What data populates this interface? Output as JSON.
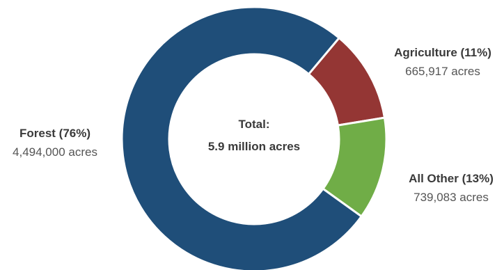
{
  "chart_data": {
    "type": "pie",
    "style": "donut",
    "center_label": {
      "line1": "Total:",
      "line2": "5.9 million acres"
    },
    "slices": [
      {
        "name": "Forest",
        "percent_label": "Forest (76%)",
        "value": 4494000,
        "value_label": "4,494,000 acres",
        "color": "#1f4e79"
      },
      {
        "name": "Agriculture",
        "percent_label": "Agriculture (11%)",
        "value": 665917,
        "value_label": "665,917 acres",
        "color": "#943634"
      },
      {
        "name": "All Other",
        "percent_label": "All Other (13%)",
        "value": 739083,
        "value_label": "739,083 acres",
        "color": "#70ad47"
      }
    ]
  }
}
